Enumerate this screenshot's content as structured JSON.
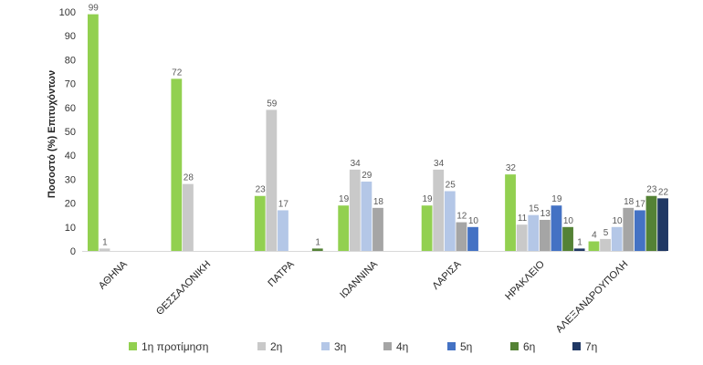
{
  "chart_data": {
    "type": "bar",
    "title": "",
    "xlabel": "",
    "ylabel": "Ποσοστό (%) Επιτυχόντων",
    "ylim": [
      0,
      100
    ],
    "yticks": [
      "0",
      "10",
      "20",
      "30",
      "40",
      "50",
      "60",
      "70",
      "80",
      "90",
      "100"
    ],
    "grid": false,
    "legend_position": "bottom",
    "categories": [
      "ΑΘΗΝΑ",
      "ΘΕΣΣΑΛΟΝΙΚΗ",
      "ΠΑΤΡΑ",
      "ΙΩΑΝΝΙΝΑ",
      "ΛΑΡΙΣΑ",
      "ΗΡΑΚΛΕΙΟ",
      "ΑΛΕΞΑΝΔΡΟΥΠΟΛΗ"
    ],
    "series": [
      {
        "name": "1η προτίμηση",
        "color": "#92d050",
        "values": [
          99,
          72,
          23,
          19,
          19,
          32,
          4
        ]
      },
      {
        "name": "2η",
        "color": "#c9c9c9",
        "values": [
          1,
          28,
          59,
          34,
          34,
          11,
          5
        ]
      },
      {
        "name": "3η",
        "color": "#b4c7e7",
        "values": [
          null,
          null,
          17,
          29,
          25,
          15,
          10
        ]
      },
      {
        "name": "4η",
        "color": "#a5a5a5",
        "values": [
          null,
          null,
          null,
          18,
          12,
          13,
          18
        ]
      },
      {
        "name": "5η",
        "color": "#4472c4",
        "values": [
          null,
          null,
          null,
          null,
          10,
          19,
          17
        ]
      },
      {
        "name": "6η",
        "color": "#548235",
        "values": [
          null,
          null,
          1,
          null,
          null,
          10,
          23
        ]
      },
      {
        "name": "7η",
        "color": "#203864",
        "values": [
          null,
          null,
          null,
          null,
          null,
          1,
          22
        ]
      }
    ]
  }
}
